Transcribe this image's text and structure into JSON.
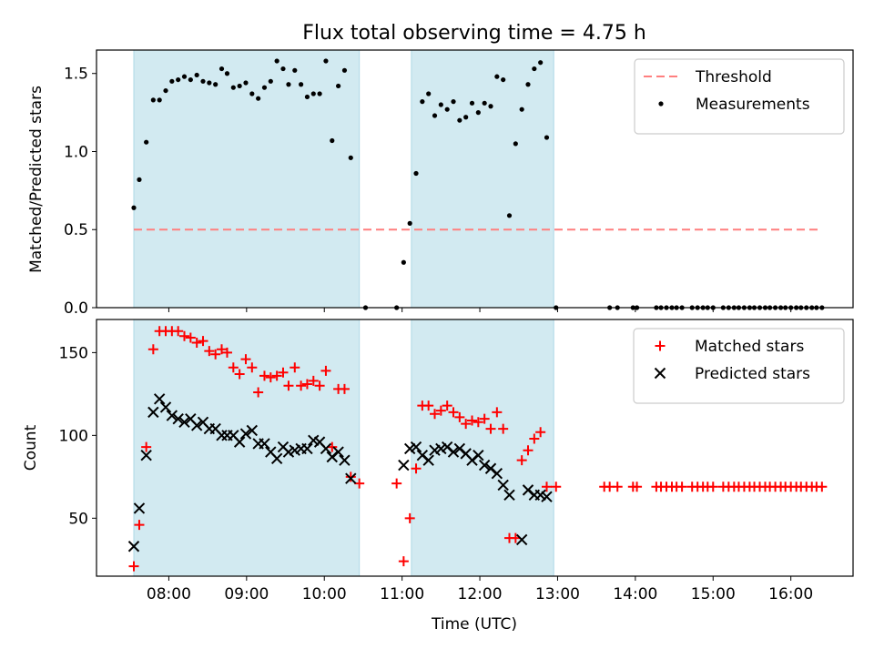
{
  "title": "Flux total observing time = 4.75 h",
  "chart_data": [
    {
      "type": "scatter",
      "ylabel": "Matched/Predicted stars",
      "xlim": [
        7.07,
        16.8
      ],
      "ylim": [
        0,
        1.65
      ],
      "yticks": [
        0.0,
        0.5,
        1.0,
        1.5
      ],
      "ytick_labels": [
        "0.0",
        "0.5",
        "1.0",
        "1.5"
      ],
      "shaded_regions": [
        [
          7.55,
          10.45
        ],
        [
          11.12,
          12.95
        ]
      ],
      "shade_color": "#add8e6",
      "legend_position": "top-right",
      "threshold": {
        "name": "Threshold",
        "y": 0.5,
        "x_range": [
          7.55,
          16.4
        ],
        "color": "#ff7f7f",
        "style": "dashed"
      },
      "series": [
        {
          "name": "Measurements",
          "marker": "dot",
          "color": "#000000",
          "points": [
            [
              7.55,
              0.64
            ],
            [
              7.62,
              0.82
            ],
            [
              7.71,
              1.06
            ],
            [
              7.8,
              1.33
            ],
            [
              7.88,
              1.33
            ],
            [
              7.96,
              1.39
            ],
            [
              8.04,
              1.45
            ],
            [
              8.12,
              1.46
            ],
            [
              8.2,
              1.48
            ],
            [
              8.28,
              1.46
            ],
            [
              8.36,
              1.49
            ],
            [
              8.44,
              1.45
            ],
            [
              8.52,
              1.44
            ],
            [
              8.6,
              1.43
            ],
            [
              8.68,
              1.53
            ],
            [
              8.75,
              1.5
            ],
            [
              8.83,
              1.41
            ],
            [
              8.91,
              1.42
            ],
            [
              8.99,
              1.44
            ],
            [
              9.07,
              1.37
            ],
            [
              9.15,
              1.34
            ],
            [
              9.23,
              1.41
            ],
            [
              9.31,
              1.45
            ],
            [
              9.39,
              1.58
            ],
            [
              9.47,
              1.53
            ],
            [
              9.54,
              1.43
            ],
            [
              9.62,
              1.52
            ],
            [
              9.7,
              1.43
            ],
            [
              9.78,
              1.35
            ],
            [
              9.86,
              1.37
            ],
            [
              9.94,
              1.37
            ],
            [
              10.02,
              1.58
            ],
            [
              10.1,
              1.07
            ],
            [
              10.18,
              1.42
            ],
            [
              10.26,
              1.52
            ],
            [
              10.34,
              0.96
            ],
            [
              10.53,
              0.0
            ],
            [
              10.93,
              0.0
            ],
            [
              11.02,
              0.29
            ],
            [
              11.1,
              0.54
            ],
            [
              11.18,
              0.86
            ],
            [
              11.26,
              1.32
            ],
            [
              11.34,
              1.37
            ],
            [
              11.42,
              1.23
            ],
            [
              11.5,
              1.3
            ],
            [
              11.58,
              1.27
            ],
            [
              11.66,
              1.32
            ],
            [
              11.74,
              1.2
            ],
            [
              11.82,
              1.22
            ],
            [
              11.9,
              1.31
            ],
            [
              11.98,
              1.25
            ],
            [
              12.06,
              1.31
            ],
            [
              12.14,
              1.29
            ],
            [
              12.22,
              1.48
            ],
            [
              12.3,
              1.46
            ],
            [
              12.38,
              0.59
            ],
            [
              12.46,
              1.05
            ],
            [
              12.54,
              1.27
            ],
            [
              12.62,
              1.43
            ],
            [
              12.7,
              1.53
            ],
            [
              12.78,
              1.57
            ],
            [
              12.86,
              1.09
            ],
            [
              12.98,
              0.0
            ],
            [
              13.67,
              0.0
            ],
            [
              13.77,
              0.0
            ],
            [
              13.97,
              0.0
            ],
            [
              14.02,
              0.0
            ],
            [
              14.27,
              0.0
            ],
            [
              14.33,
              0.0
            ],
            [
              14.4,
              0.0
            ],
            [
              14.47,
              0.0
            ],
            [
              14.53,
              0.0
            ],
            [
              14.6,
              0.0
            ],
            [
              14.73,
              0.0
            ],
            [
              14.8,
              0.0
            ],
            [
              14.87,
              0.0
            ],
            [
              14.93,
              0.0
            ],
            [
              15.0,
              0.0
            ],
            [
              15.13,
              0.0
            ],
            [
              15.2,
              0.0
            ],
            [
              15.27,
              0.0
            ],
            [
              15.33,
              0.0
            ],
            [
              15.4,
              0.0
            ],
            [
              15.47,
              0.0
            ],
            [
              15.53,
              0.0
            ],
            [
              15.6,
              0.0
            ],
            [
              15.67,
              0.0
            ],
            [
              15.73,
              0.0
            ],
            [
              15.8,
              0.0
            ],
            [
              15.87,
              0.0
            ],
            [
              15.93,
              0.0
            ],
            [
              16.0,
              0.0
            ],
            [
              16.07,
              0.0
            ],
            [
              16.13,
              0.0
            ],
            [
              16.2,
              0.0
            ],
            [
              16.27,
              0.0
            ],
            [
              16.33,
              0.0
            ],
            [
              16.4,
              0.0
            ]
          ]
        }
      ]
    },
    {
      "type": "scatter",
      "xlabel": "Time (UTC)",
      "ylabel": "Count",
      "xlim": [
        7.07,
        16.8
      ],
      "ylim": [
        15,
        170
      ],
      "xticks": [
        8,
        9,
        10,
        11,
        12,
        13,
        14,
        15,
        16
      ],
      "xtick_labels": [
        "08:00",
        "09:00",
        "10:00",
        "11:00",
        "12:00",
        "13:00",
        "14:00",
        "15:00",
        "16:00"
      ],
      "yticks": [
        50,
        100,
        150
      ],
      "ytick_labels": [
        "50",
        "100",
        "150"
      ],
      "shaded_regions": [
        [
          7.55,
          10.45
        ],
        [
          11.12,
          12.95
        ]
      ],
      "shade_color": "#add8e6",
      "legend_position": "top-right",
      "series": [
        {
          "name": "Matched stars",
          "marker": "plus",
          "color": "#ff0000",
          "points": [
            [
              7.55,
              21
            ],
            [
              7.62,
              46
            ],
            [
              7.71,
              93
            ],
            [
              7.8,
              152
            ],
            [
              7.88,
              163
            ],
            [
              7.96,
              163
            ],
            [
              8.04,
              163
            ],
            [
              8.12,
              163
            ],
            [
              8.2,
              160
            ],
            [
              8.28,
              159
            ],
            [
              8.36,
              156
            ],
            [
              8.44,
              157
            ],
            [
              8.52,
              151
            ],
            [
              8.6,
              149
            ],
            [
              8.68,
              152
            ],
            [
              8.75,
              150
            ],
            [
              8.83,
              141
            ],
            [
              8.91,
              137
            ],
            [
              8.99,
              146
            ],
            [
              9.07,
              141
            ],
            [
              9.15,
              126
            ],
            [
              9.23,
              136
            ],
            [
              9.31,
              135
            ],
            [
              9.39,
              136
            ],
            [
              9.47,
              138
            ],
            [
              9.54,
              130
            ],
            [
              9.62,
              141
            ],
            [
              9.7,
              130
            ],
            [
              9.78,
              131
            ],
            [
              9.86,
              133
            ],
            [
              9.94,
              130
            ],
            [
              10.02,
              139
            ],
            [
              10.1,
              93
            ],
            [
              10.18,
              128
            ],
            [
              10.26,
              128
            ],
            [
              10.34,
              75
            ],
            [
              10.45,
              71
            ],
            [
              10.93,
              71
            ],
            [
              11.02,
              24
            ],
            [
              11.1,
              50
            ],
            [
              11.18,
              80
            ],
            [
              11.26,
              118
            ],
            [
              11.34,
              118
            ],
            [
              11.42,
              113
            ],
            [
              11.5,
              115
            ],
            [
              11.58,
              118
            ],
            [
              11.66,
              114
            ],
            [
              11.74,
              111
            ],
            [
              11.82,
              107
            ],
            [
              11.9,
              109
            ],
            [
              11.98,
              108
            ],
            [
              12.06,
              110
            ],
            [
              12.14,
              104
            ],
            [
              12.22,
              114
            ],
            [
              12.3,
              104
            ],
            [
              12.38,
              38
            ],
            [
              12.46,
              38
            ],
            [
              12.54,
              85
            ],
            [
              12.62,
              91
            ],
            [
              12.7,
              98
            ],
            [
              12.78,
              102
            ],
            [
              12.86,
              69
            ],
            [
              12.98,
              69
            ],
            [
              13.6,
              69
            ],
            [
              13.67,
              69
            ],
            [
              13.77,
              69
            ],
            [
              13.97,
              69
            ],
            [
              14.02,
              69
            ],
            [
              14.27,
              69
            ],
            [
              14.33,
              69
            ],
            [
              14.4,
              69
            ],
            [
              14.47,
              69
            ],
            [
              14.53,
              69
            ],
            [
              14.6,
              69
            ],
            [
              14.73,
              69
            ],
            [
              14.8,
              69
            ],
            [
              14.87,
              69
            ],
            [
              14.93,
              69
            ],
            [
              15.0,
              69
            ],
            [
              15.13,
              69
            ],
            [
              15.2,
              69
            ],
            [
              15.27,
              69
            ],
            [
              15.33,
              69
            ],
            [
              15.4,
              69
            ],
            [
              15.47,
              69
            ],
            [
              15.53,
              69
            ],
            [
              15.6,
              69
            ],
            [
              15.67,
              69
            ],
            [
              15.73,
              69
            ],
            [
              15.8,
              69
            ],
            [
              15.87,
              69
            ],
            [
              15.93,
              69
            ],
            [
              16.0,
              69
            ],
            [
              16.07,
              69
            ],
            [
              16.13,
              69
            ],
            [
              16.2,
              69
            ],
            [
              16.27,
              69
            ],
            [
              16.33,
              69
            ],
            [
              16.4,
              69
            ]
          ]
        },
        {
          "name": "Predicted stars",
          "marker": "x",
          "color": "#000000",
          "points": [
            [
              7.55,
              33
            ],
            [
              7.62,
              56
            ],
            [
              7.71,
              88
            ],
            [
              7.8,
              114
            ],
            [
              7.88,
              122
            ],
            [
              7.96,
              117
            ],
            [
              8.04,
              112
            ],
            [
              8.12,
              110
            ],
            [
              8.2,
              108
            ],
            [
              8.28,
              110
            ],
            [
              8.36,
              106
            ],
            [
              8.44,
              108
            ],
            [
              8.52,
              104
            ],
            [
              8.6,
              104
            ],
            [
              8.68,
              100
            ],
            [
              8.75,
              100
            ],
            [
              8.83,
              100
            ],
            [
              8.91,
              96
            ],
            [
              8.99,
              101
            ],
            [
              9.07,
              103
            ],
            [
              9.15,
              95
            ],
            [
              9.23,
              95
            ],
            [
              9.31,
              90
            ],
            [
              9.39,
              86
            ],
            [
              9.47,
              93
            ],
            [
              9.54,
              90
            ],
            [
              9.62,
              91
            ],
            [
              9.7,
              92
            ],
            [
              9.78,
              92
            ],
            [
              9.86,
              97
            ],
            [
              9.94,
              96
            ],
            [
              10.02,
              92
            ],
            [
              10.1,
              87
            ],
            [
              10.18,
              90
            ],
            [
              10.26,
              85
            ],
            [
              10.34,
              74
            ],
            [
              11.02,
              82
            ],
            [
              11.1,
              92
            ],
            [
              11.18,
              93
            ],
            [
              11.26,
              88
            ],
            [
              11.34,
              85
            ],
            [
              11.42,
              91
            ],
            [
              11.5,
              92
            ],
            [
              11.58,
              93
            ],
            [
              11.66,
              90
            ],
            [
              11.74,
              92
            ],
            [
              11.82,
              89
            ],
            [
              11.9,
              85
            ],
            [
              11.98,
              88
            ],
            [
              12.06,
              82
            ],
            [
              12.14,
              80
            ],
            [
              12.22,
              77
            ],
            [
              12.3,
              70
            ],
            [
              12.38,
              64
            ],
            [
              12.54,
              37
            ],
            [
              12.62,
              67
            ],
            [
              12.7,
              64
            ],
            [
              12.78,
              64
            ],
            [
              12.86,
              63
            ]
          ]
        }
      ]
    }
  ]
}
